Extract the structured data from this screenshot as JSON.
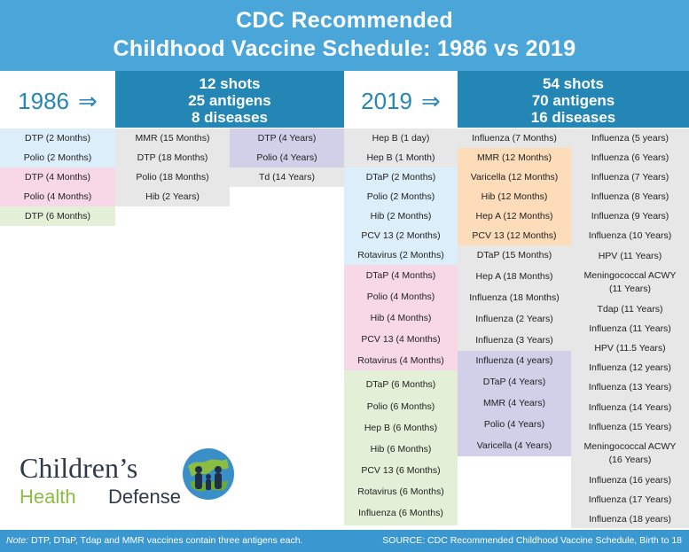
{
  "title": {
    "line1": "CDC Recommended",
    "line2": "Childhood Vaccine Schedule: 1986 vs 2019"
  },
  "y1986": {
    "year": "1986",
    "arrow": "⇒",
    "shots": "12 shots",
    "antigens": "25 antigens",
    "diseases": "8 diseases",
    "col1": [
      "DTP (2 Months)",
      "Polio (2 Months)",
      "DTP (4 Months)",
      "Polio (4 Months)",
      "DTP (6 Months)"
    ],
    "col2": [
      "MMR (15 Months)",
      "DTP (18 Months)",
      "Polio (18 Months)",
      "Hib (2 Years)"
    ],
    "col3": [
      "DTP (4 Years)",
      "Polio (4 Years)",
      "Td (14 Years)"
    ]
  },
  "y2019": {
    "year": "2019",
    "arrow": "⇒",
    "shots": "54 shots",
    "antigens": "70 antigens",
    "diseases": "16 diseases",
    "col1": [
      "Hep B (1 day)",
      "Hep B (1 Month)",
      "DTaP (2 Months)",
      "Polio (2 Months)",
      "Hib (2 Months)",
      "PCV 13 (2 Months)",
      "Rotavirus (2 Months)",
      "DTaP (4 Months)",
      "Polio (4 Months)",
      "Hib (4 Months)",
      "PCV 13 (4 Months)",
      "Rotavirus (4 Months)",
      "DTaP (6 Months)",
      "Polio (6 Months)",
      "Hep B (6 Months)",
      "Hib (6 Months)",
      "PCV 13 (6 Months)",
      "Rotavirus (6 Months)",
      "Influenza (6 Months)"
    ],
    "col2": [
      "Influenza (7 Months)",
      "MMR (12 Months)",
      "Varicella (12 Months)",
      "Hib (12 Months)",
      "Hep A (12 Months)",
      "PCV 13 (12 Months)",
      "DTaP (15 Months)",
      "Hep A (18 Months)",
      "Influenza (18 Months)",
      "Influenza (2 Years)",
      "Influenza (3 Years)",
      "Influenza (4 years)",
      "DTaP (4 Years)",
      "MMR (4 Years)",
      "Polio (4 Years)",
      "Varicella (4 Years)"
    ],
    "col3": [
      "Influenza (5 years)",
      "Influenza (6 Years)",
      "Influenza (7 Years)",
      "Influenza (8 Years)",
      "Influenza (9 Years)",
      "Influenza (10 Years)",
      "HPV (11 Years)",
      "Meningococcal ACWY",
      "(11 Years)",
      "Tdap (11 Years)",
      "Influenza (11 Years)",
      "HPV (11.5 Years)",
      "Influenza (12 years)",
      "Influenza (13 Years)",
      "Influenza (14 Years)",
      "Influenza (15 Years)",
      "Meningococcal ACWY",
      "(16 Years)",
      "Influenza (16 years)",
      "Influenza (17 Years)",
      "Influenza (18 years)"
    ]
  },
  "logo": {
    "word1": "Children’s",
    "word2": "Health",
    "word3": "Defense"
  },
  "footer": {
    "note_label": "Note:",
    "note_text": "DTP, DTaP, Tdap and MMR vaccines contain three antigens each.",
    "source": "SOURCE: CDC Recommended Childhood Vaccine Schedule, Birth to 18"
  },
  "colors": {
    "title_bg": "#4aa6d9",
    "header_bg": "#2386b5",
    "blue_band": "#dceef9",
    "pink_band": "#f8d7e7",
    "green_band": "#e3efd6",
    "gray_band": "#e7e7e8",
    "purple_band": "#d2cfe9",
    "orange_band": "#fcdcb9",
    "year_text": "#2686b8"
  }
}
